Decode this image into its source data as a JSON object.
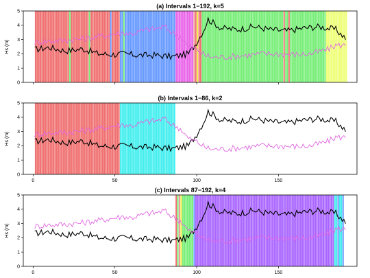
{
  "chart_data": [
    {
      "type": "line",
      "title": "(a) Intervals 1−192, k=5",
      "ylabel": "Hs (m)",
      "xlim": [
        -6,
        198
      ],
      "ylim": [
        0,
        5
      ],
      "xticks": [
        0,
        50,
        100,
        150
      ],
      "yticks": [
        0,
        1,
        2,
        3,
        4,
        5
      ],
      "x_ticks_labeled": false,
      "grid": false,
      "series": [
        {
          "color": "#000000",
          "anchors": [
            [
              1,
              2.3
            ],
            [
              10,
              2.45
            ],
            [
              20,
              2.2
            ],
            [
              30,
              2.35
            ],
            [
              40,
              2.0
            ],
            [
              50,
              1.95
            ],
            [
              55,
              2.0
            ],
            [
              65,
              1.9
            ],
            [
              75,
              1.9
            ],
            [
              85,
              1.8
            ],
            [
              95,
              2.0
            ],
            [
              100,
              2.8
            ],
            [
              104,
              3.6
            ],
            [
              107,
              4.4
            ],
            [
              115,
              3.8
            ],
            [
              125,
              3.7
            ],
            [
              135,
              3.9
            ],
            [
              145,
              3.7
            ],
            [
              155,
              3.6
            ],
            [
              165,
              3.8
            ],
            [
              175,
              3.9
            ],
            [
              185,
              3.7
            ],
            [
              191,
              3.1
            ]
          ]
        },
        {
          "color": "#e066e0",
          "anchors": [
            [
              1,
              2.8
            ],
            [
              10,
              2.9
            ],
            [
              20,
              2.95
            ],
            [
              30,
              3.05
            ],
            [
              40,
              3.2
            ],
            [
              50,
              3.4
            ],
            [
              55,
              3.5
            ],
            [
              60,
              3.4
            ],
            [
              70,
              3.7
            ],
            [
              75,
              3.75
            ],
            [
              80,
              3.9
            ],
            [
              85,
              3.5
            ],
            [
              90,
              3.2
            ],
            [
              95,
              2.5
            ],
            [
              100,
              2.3
            ],
            [
              105,
              1.9
            ],
            [
              110,
              1.75
            ],
            [
              120,
              1.8
            ],
            [
              130,
              1.9
            ],
            [
              140,
              2.0
            ],
            [
              150,
              2.0
            ],
            [
              160,
              1.95
            ],
            [
              170,
              2.0
            ],
            [
              180,
              2.3
            ],
            [
              185,
              2.6
            ],
            [
              191,
              2.6
            ]
          ]
        }
      ],
      "segments": [
        {
          "from": 1,
          "to": 22,
          "color": "#f07070"
        },
        {
          "from": 22,
          "to": 23,
          "color": "#77ee77"
        },
        {
          "from": 23,
          "to": 34,
          "color": "#f07070"
        },
        {
          "from": 34,
          "to": 35,
          "color": "#77ee77"
        },
        {
          "from": 35,
          "to": 47,
          "color": "#f07070"
        },
        {
          "from": 47,
          "to": 48,
          "color": "#6699ff"
        },
        {
          "from": 48,
          "to": 53,
          "color": "#f07070"
        },
        {
          "from": 53,
          "to": 55,
          "color": "#6699ff"
        },
        {
          "from": 55,
          "to": 56,
          "color": "#77ee77"
        },
        {
          "from": 56,
          "to": 87,
          "color": "#6699ff"
        },
        {
          "from": 87,
          "to": 98,
          "color": "#e966e9"
        },
        {
          "from": 98,
          "to": 99,
          "color": "#ee9999"
        },
        {
          "from": 99,
          "to": 100,
          "color": "#f07070"
        },
        {
          "from": 100,
          "to": 101,
          "color": "#eeee44"
        },
        {
          "from": 101,
          "to": 103,
          "color": "#f07070"
        },
        {
          "from": 103,
          "to": 153,
          "color": "#77ee77"
        },
        {
          "from": 153,
          "to": 154,
          "color": "#f07070"
        },
        {
          "from": 154,
          "to": 156,
          "color": "#77ee77"
        },
        {
          "from": 156,
          "to": 157,
          "color": "#f07070"
        },
        {
          "from": 157,
          "to": 179,
          "color": "#77ee77"
        },
        {
          "from": 179,
          "to": 192,
          "color": "#eeff77"
        }
      ]
    },
    {
      "type": "line",
      "title": "(b) Intervals 1−86, k=2",
      "ylabel": "Hs (m)",
      "xlim": [
        -6,
        198
      ],
      "ylim": [
        0,
        5
      ],
      "xticks": [
        0,
        50,
        100,
        150
      ],
      "yticks": [
        0,
        1,
        2,
        3,
        4,
        5
      ],
      "x_ticks_labeled": true,
      "grid": false,
      "series": [
        {
          "color": "#000000",
          "anchors": [
            [
              1,
              2.3
            ],
            [
              10,
              2.45
            ],
            [
              20,
              2.2
            ],
            [
              30,
              2.35
            ],
            [
              40,
              2.0
            ],
            [
              50,
              1.95
            ],
            [
              55,
              2.0
            ],
            [
              65,
              1.9
            ],
            [
              75,
              1.9
            ],
            [
              85,
              1.8
            ],
            [
              95,
              2.0
            ],
            [
              100,
              2.8
            ],
            [
              104,
              3.6
            ],
            [
              107,
              4.4
            ],
            [
              115,
              3.8
            ],
            [
              125,
              3.7
            ],
            [
              135,
              3.9
            ],
            [
              145,
              3.7
            ],
            [
              155,
              3.6
            ],
            [
              165,
              3.8
            ],
            [
              175,
              3.9
            ],
            [
              185,
              3.7
            ],
            [
              191,
              3.1
            ]
          ]
        },
        {
          "color": "#e066e0",
          "anchors": [
            [
              1,
              2.8
            ],
            [
              10,
              2.9
            ],
            [
              20,
              2.95
            ],
            [
              30,
              3.05
            ],
            [
              40,
              3.2
            ],
            [
              50,
              3.4
            ],
            [
              55,
              3.5
            ],
            [
              60,
              3.4
            ],
            [
              70,
              3.7
            ],
            [
              75,
              3.75
            ],
            [
              80,
              3.9
            ],
            [
              85,
              3.5
            ],
            [
              90,
              3.2
            ],
            [
              95,
              2.5
            ],
            [
              100,
              2.3
            ],
            [
              105,
              1.9
            ],
            [
              110,
              1.75
            ],
            [
              120,
              1.8
            ],
            [
              130,
              1.9
            ],
            [
              140,
              2.0
            ],
            [
              150,
              2.0
            ],
            [
              160,
              1.95
            ],
            [
              170,
              2.0
            ],
            [
              180,
              2.3
            ],
            [
              185,
              2.6
            ],
            [
              191,
              2.6
            ]
          ]
        }
      ],
      "segments": [
        {
          "from": 1,
          "to": 53,
          "color": "#f07070"
        },
        {
          "from": 53,
          "to": 87,
          "color": "#44eeee"
        }
      ]
    },
    {
      "type": "line",
      "title": "(c) Intervals 87−192, k=4",
      "ylabel": "Hs (m)",
      "xlim": [
        -6,
        198
      ],
      "ylim": [
        0,
        5
      ],
      "xticks": [
        0,
        50,
        100,
        150
      ],
      "yticks": [
        0,
        1,
        2,
        3,
        4,
        5
      ],
      "x_ticks_labeled": true,
      "grid": false,
      "series": [
        {
          "color": "#000000",
          "anchors": [
            [
              1,
              2.3
            ],
            [
              10,
              2.45
            ],
            [
              20,
              2.2
            ],
            [
              30,
              2.35
            ],
            [
              40,
              2.0
            ],
            [
              50,
              1.95
            ],
            [
              55,
              2.0
            ],
            [
              65,
              1.9
            ],
            [
              75,
              1.9
            ],
            [
              85,
              1.8
            ],
            [
              95,
              2.0
            ],
            [
              100,
              2.8
            ],
            [
              104,
              3.6
            ],
            [
              107,
              4.4
            ],
            [
              115,
              3.8
            ],
            [
              125,
              3.7
            ],
            [
              135,
              3.9
            ],
            [
              145,
              3.7
            ],
            [
              155,
              3.6
            ],
            [
              165,
              3.8
            ],
            [
              175,
              3.9
            ],
            [
              185,
              3.7
            ],
            [
              191,
              3.1
            ]
          ]
        },
        {
          "color": "#e066e0",
          "anchors": [
            [
              1,
              2.8
            ],
            [
              10,
              2.9
            ],
            [
              20,
              2.95
            ],
            [
              30,
              3.05
            ],
            [
              40,
              3.2
            ],
            [
              50,
              3.4
            ],
            [
              55,
              3.5
            ],
            [
              60,
              3.4
            ],
            [
              70,
              3.7
            ],
            [
              75,
              3.75
            ],
            [
              80,
              3.9
            ],
            [
              85,
              3.5
            ],
            [
              90,
              3.2
            ],
            [
              95,
              2.5
            ],
            [
              100,
              2.3
            ],
            [
              105,
              1.9
            ],
            [
              110,
              1.75
            ],
            [
              120,
              1.8
            ],
            [
              130,
              1.9
            ],
            [
              140,
              2.0
            ],
            [
              150,
              2.0
            ],
            [
              160,
              1.95
            ],
            [
              170,
              2.0
            ],
            [
              180,
              2.3
            ],
            [
              185,
              2.6
            ],
            [
              191,
              2.6
            ]
          ]
        }
      ],
      "segments": [
        {
          "from": 87,
          "to": 88,
          "color": "#f07070"
        },
        {
          "from": 88,
          "to": 89,
          "color": "#77ee77"
        },
        {
          "from": 89,
          "to": 90,
          "color": "#ee9999"
        },
        {
          "from": 90,
          "to": 91,
          "color": "#eeee44"
        },
        {
          "from": 91,
          "to": 98,
          "color": "#77ee77"
        },
        {
          "from": 98,
          "to": 99,
          "color": "#6699ff"
        },
        {
          "from": 99,
          "to": 184,
          "color": "#aa66ff"
        },
        {
          "from": 184,
          "to": 186,
          "color": "#44eeee"
        },
        {
          "from": 186,
          "to": 187,
          "color": "#6699ff"
        },
        {
          "from": 187,
          "to": 189,
          "color": "#44eeee"
        },
        {
          "from": 189,
          "to": 190,
          "color": "#6699ff"
        }
      ]
    }
  ]
}
